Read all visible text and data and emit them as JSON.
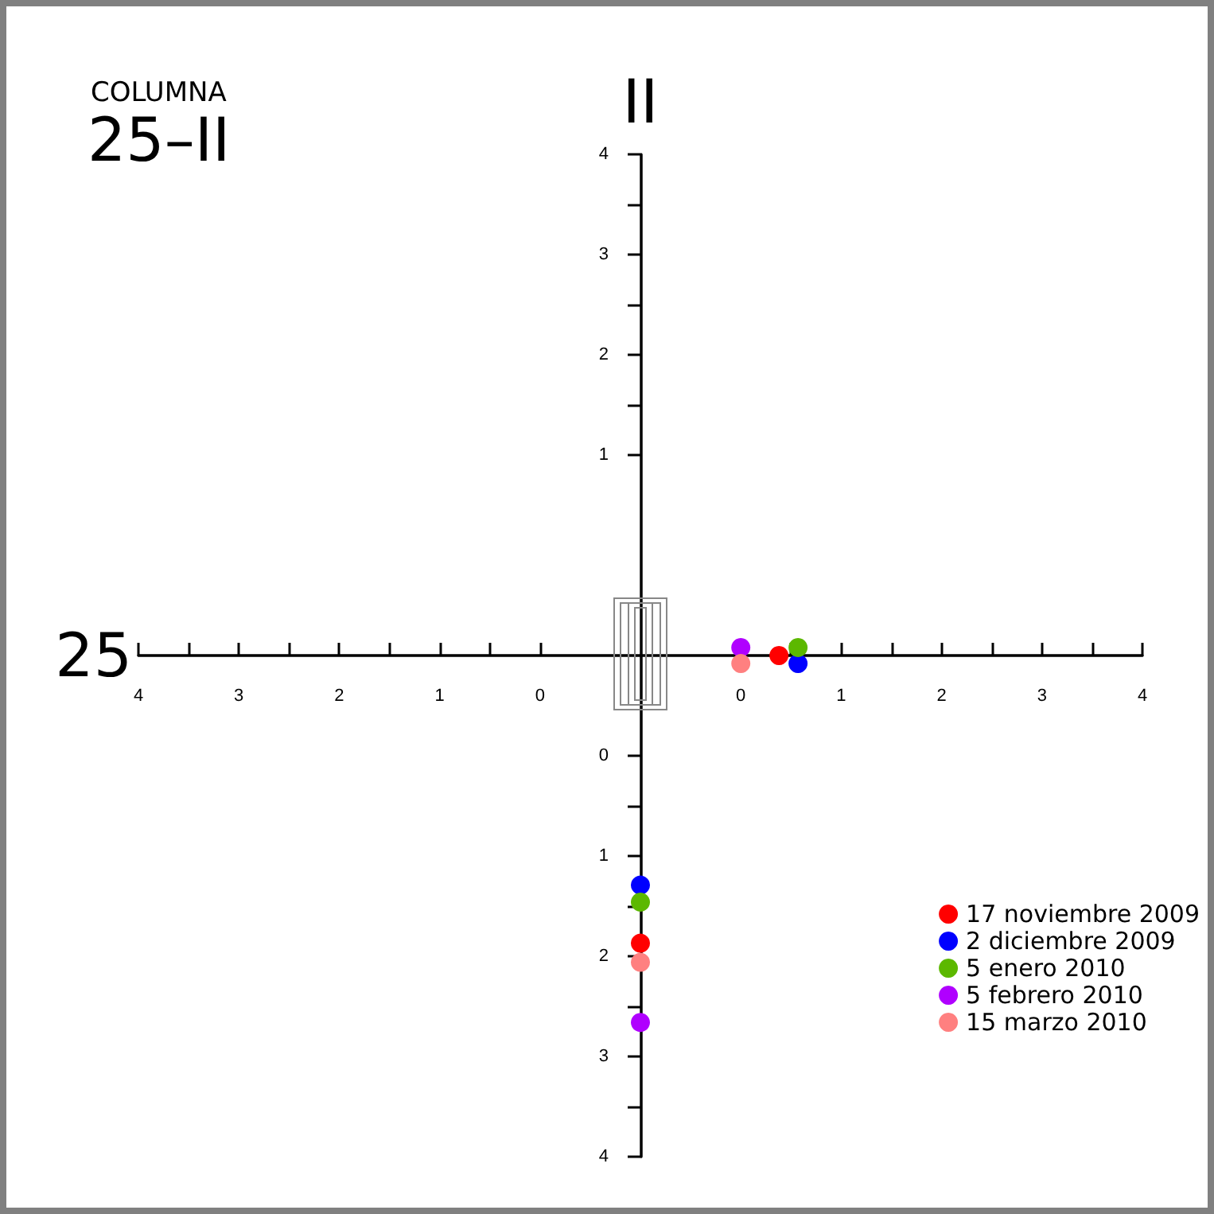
{
  "chart_data": {
    "type": "scatter",
    "title": "COLUMNA",
    "subtitle": "25–II",
    "xlabel": "25",
    "y2label": "II",
    "xlim": [
      -6,
      4
    ],
    "xticks": [
      0,
      1,
      2,
      3,
      4
    ],
    "x2lim": [
      4,
      -6
    ],
    "x2ticks": [
      0,
      1,
      2,
      3,
      4
    ],
    "ylim": [
      4,
      -6
    ],
    "yticks": [
      0,
      1,
      2,
      3,
      4
    ],
    "y2lim": [
      -6,
      4
    ],
    "y2ticks": [
      1,
      2,
      3,
      4
    ],
    "series": [
      {
        "name": "17 noviembre 2009",
        "color": "#ff0000",
        "x": [
          0.38,
          -1
        ],
        "values": [
          -1,
          1.87
        ]
      },
      {
        "name": "2 diciembre 2009",
        "color": "#0000ff",
        "x": [
          0.57,
          -1
        ],
        "values": [
          -0.92,
          1.29
        ]
      },
      {
        "name": "5 enero 2010",
        "color": "#5cb800",
        "x": [
          0.57,
          -1
        ],
        "values": [
          -1.08,
          1.46
        ]
      },
      {
        "name": "5 febrero 2010",
        "color": "#b000ff",
        "x": [
          0,
          -1
        ],
        "values": [
          -1.08,
          2.66
        ]
      },
      {
        "name": "15 marzo 2010",
        "color": "#ff8080",
        "x": [
          0,
          -1
        ],
        "values": [
          -0.92,
          2.06
        ]
      }
    ],
    "marker": "circle",
    "grid": false,
    "legend": "bottom right"
  }
}
